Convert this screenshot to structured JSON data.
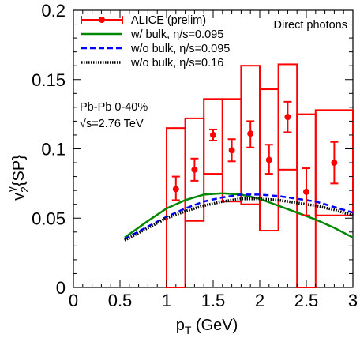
{
  "chart_data": {
    "type": "scatter",
    "ylabel": "v2γ{SP}",
    "xlabel": "pT (GeV)",
    "xlim": [
      0,
      3
    ],
    "ylim": [
      0,
      0.2
    ],
    "x_ticks": [
      "0",
      "0.5",
      "1",
      "1.5",
      "2",
      "2.5",
      "3"
    ],
    "y_ticks": [
      "0",
      "0.05",
      "0.1",
      "0.15",
      "0.2"
    ],
    "annotation_top_right": "Direct photons",
    "annotation_lines": [
      "Pb-Pb 0-40%",
      "√s=2.76 TeV"
    ],
    "series": [
      {
        "name": "ALICE (prelim)",
        "color": "#ff0000",
        "points": [
          {
            "x": 1.1,
            "y": 0.071,
            "stat_lo": 0.063,
            "stat_hi": 0.08,
            "sys_lo": 0.0,
            "sys_hi": 0.115,
            "xlo": 1.0,
            "xhi": 1.2
          },
          {
            "x": 1.3,
            "y": 0.085,
            "stat_lo": 0.077,
            "stat_hi": 0.093,
            "sys_lo": 0.048,
            "sys_hi": 0.122,
            "xlo": 1.2,
            "xhi": 1.4
          },
          {
            "x": 1.5,
            "y": 0.11,
            "stat_lo": 0.106,
            "stat_hi": 0.114,
            "sys_lo": 0.082,
            "sys_hi": 0.136,
            "xlo": 1.4,
            "xhi": 1.6
          },
          {
            "x": 1.7,
            "y": 0.099,
            "stat_lo": 0.091,
            "stat_hi": 0.107,
            "sys_lo": 0.062,
            "sys_hi": 0.136,
            "xlo": 1.6,
            "xhi": 1.8
          },
          {
            "x": 1.9,
            "y": 0.111,
            "stat_lo": 0.101,
            "stat_hi": 0.12,
            "sys_lo": 0.06,
            "sys_hi": 0.16,
            "xlo": 1.8,
            "xhi": 2.0
          },
          {
            "x": 2.1,
            "y": 0.092,
            "stat_lo": 0.082,
            "stat_hi": 0.103,
            "sys_lo": 0.041,
            "sys_hi": 0.143,
            "xlo": 2.0,
            "xhi": 2.2
          },
          {
            "x": 2.3,
            "y": 0.123,
            "stat_lo": 0.112,
            "stat_hi": 0.134,
            "sys_lo": 0.085,
            "sys_hi": 0.161,
            "xlo": 2.2,
            "xhi": 2.4
          },
          {
            "x": 2.5,
            "y": 0.069,
            "stat_lo": 0.052,
            "stat_hi": 0.086,
            "sys_lo": 0.0,
            "sys_hi": 0.125,
            "xlo": 2.4,
            "xhi": 2.6
          },
          {
            "x": 2.8,
            "y": 0.09,
            "stat_lo": 0.075,
            "stat_hi": 0.105,
            "sys_lo": 0.052,
            "sys_hi": 0.128,
            "xlo": 2.6,
            "xhi": 3.0
          }
        ]
      },
      {
        "name": "w/ bulk, η/s=0.095",
        "color": "#008800",
        "style": "solid",
        "x": [
          0.55,
          0.8,
          1.0,
          1.2,
          1.4,
          1.6,
          1.8,
          2.0,
          2.2,
          2.4,
          2.6,
          2.8,
          3.0
        ],
        "y": [
          0.036,
          0.048,
          0.057,
          0.063,
          0.067,
          0.068,
          0.067,
          0.064,
          0.059,
          0.054,
          0.049,
          0.043,
          0.036
        ]
      },
      {
        "name": "w/o bulk, η/s=0.095",
        "color": "#0000ff",
        "style": "dashed",
        "x": [
          0.55,
          0.8,
          1.0,
          1.2,
          1.4,
          1.6,
          1.8,
          2.0,
          2.2,
          2.4,
          2.6,
          2.8,
          3.0
        ],
        "y": [
          0.035,
          0.044,
          0.051,
          0.057,
          0.062,
          0.065,
          0.067,
          0.067,
          0.066,
          0.064,
          0.062,
          0.058,
          0.054
        ]
      },
      {
        "name": "w/o bulk, η/s=0.16",
        "color": "#000000",
        "style": "dotted",
        "x": [
          0.55,
          0.8,
          1.0,
          1.2,
          1.4,
          1.6,
          1.8,
          2.0,
          2.2,
          2.4,
          2.6,
          2.8,
          3.0
        ],
        "y": [
          0.034,
          0.043,
          0.05,
          0.055,
          0.059,
          0.062,
          0.064,
          0.064,
          0.063,
          0.061,
          0.059,
          0.056,
          0.052
        ]
      }
    ]
  }
}
